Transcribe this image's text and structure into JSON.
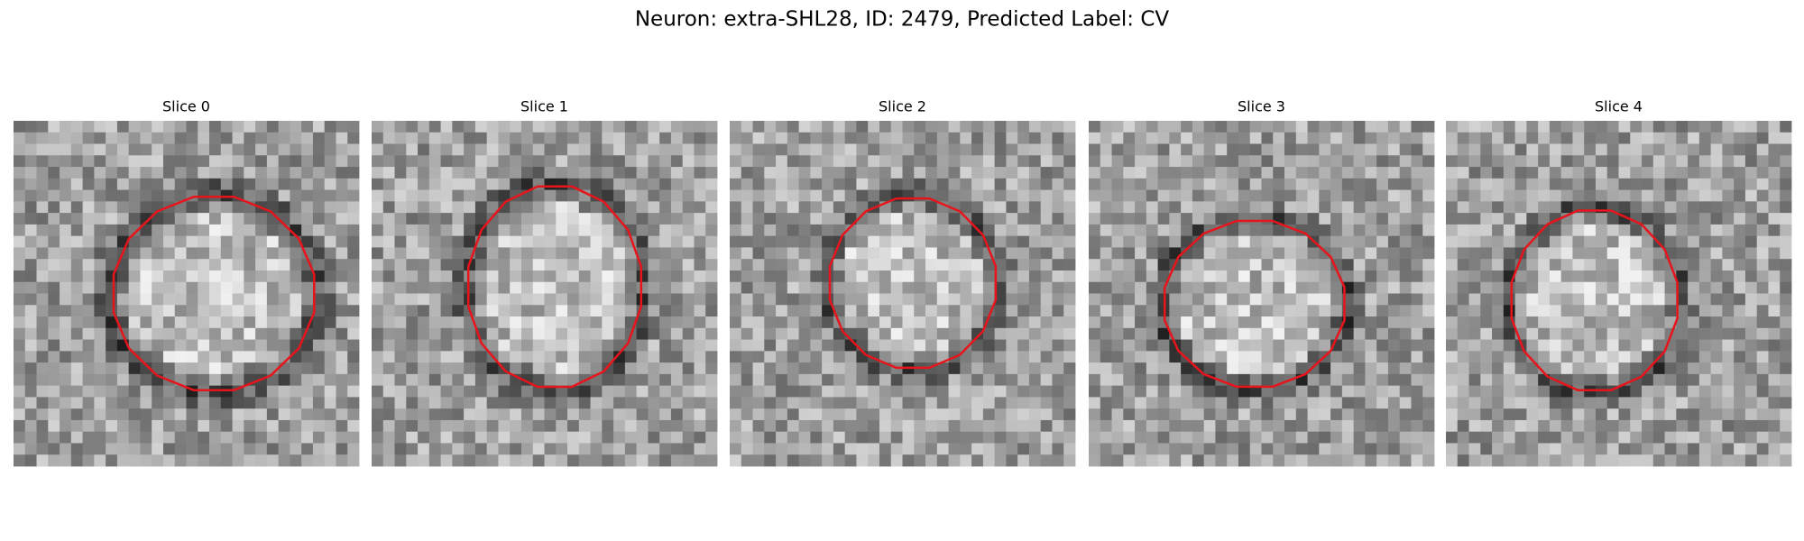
{
  "title": "Neuron: extra-SHL28, ID: 2479, Predicted Label: CV",
  "panels": [
    {
      "title": "Slice 0"
    },
    {
      "title": "Slice 1"
    },
    {
      "title": "Slice 2"
    },
    {
      "title": "Slice 3"
    },
    {
      "title": "Slice 4"
    }
  ]
}
